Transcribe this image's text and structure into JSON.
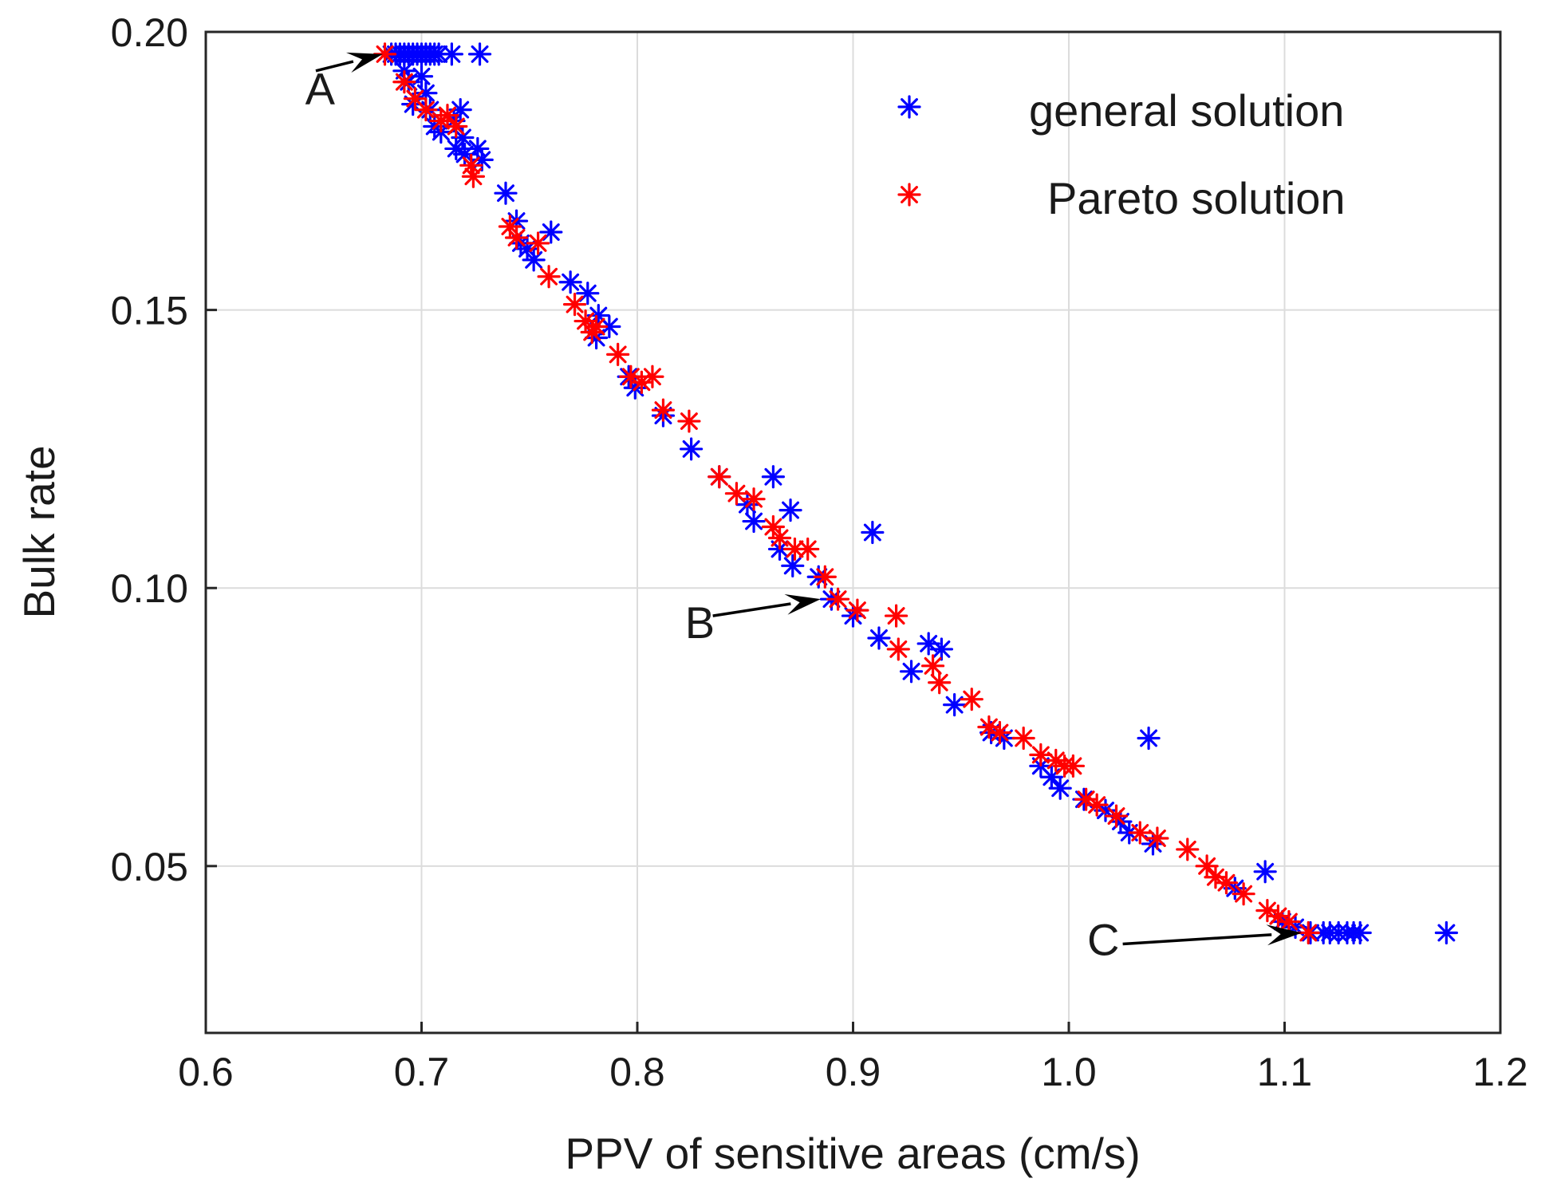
{
  "chart_data": {
    "type": "scatter",
    "title": "",
    "xlabel": "PPV of sensitive areas (cm/s)",
    "ylabel": "Bulk rate",
    "xlim": [
      0.6,
      1.2
    ],
    "ylim": [
      0.02,
      0.2
    ],
    "xticks": [
      0.6,
      0.7,
      0.8,
      0.9,
      1.0,
      1.1,
      1.2
    ],
    "xtick_labels": [
      "0.6",
      "0.7",
      "0.8",
      "0.9",
      "1.0",
      "1.1",
      "1.2"
    ],
    "yticks": [
      0.05,
      0.1,
      0.15,
      0.2
    ],
    "ytick_labels": [
      "0.05",
      "0.10",
      "0.15",
      "0.20"
    ],
    "grid": true,
    "legend_position": "top-right",
    "series": [
      {
        "name": "general solution",
        "color": "#0000ff",
        "marker": "asterisk",
        "points": [
          [
            0.686,
            0.196
          ],
          [
            0.688,
            0.196
          ],
          [
            0.69,
            0.196
          ],
          [
            0.692,
            0.196
          ],
          [
            0.694,
            0.196
          ],
          [
            0.696,
            0.196
          ],
          [
            0.698,
            0.196
          ],
          [
            0.7,
            0.196
          ],
          [
            0.702,
            0.196
          ],
          [
            0.704,
            0.196
          ],
          [
            0.706,
            0.196
          ],
          [
            0.708,
            0.196
          ],
          [
            0.714,
            0.196
          ],
          [
            0.727,
            0.196
          ],
          [
            0.692,
            0.193
          ],
          [
            0.694,
            0.191
          ],
          [
            0.7,
            0.192
          ],
          [
            0.702,
            0.189
          ],
          [
            0.696,
            0.187
          ],
          [
            0.704,
            0.186
          ],
          [
            0.706,
            0.183
          ],
          [
            0.709,
            0.182
          ],
          [
            0.715,
            0.184
          ],
          [
            0.718,
            0.186
          ],
          [
            0.719,
            0.181
          ],
          [
            0.716,
            0.179
          ],
          [
            0.72,
            0.178
          ],
          [
            0.726,
            0.179
          ],
          [
            0.728,
            0.177
          ],
          [
            0.739,
            0.171
          ],
          [
            0.744,
            0.166
          ],
          [
            0.746,
            0.162
          ],
          [
            0.749,
            0.161
          ],
          [
            0.752,
            0.159
          ],
          [
            0.76,
            0.164
          ],
          [
            0.769,
            0.155
          ],
          [
            0.777,
            0.153
          ],
          [
            0.782,
            0.149
          ],
          [
            0.787,
            0.147
          ],
          [
            0.781,
            0.145
          ],
          [
            0.796,
            0.138
          ],
          [
            0.799,
            0.136
          ],
          [
            0.812,
            0.131
          ],
          [
            0.825,
            0.125
          ],
          [
            0.838,
            0.12
          ],
          [
            0.863,
            0.12
          ],
          [
            0.851,
            0.115
          ],
          [
            0.854,
            0.112
          ],
          [
            0.871,
            0.114
          ],
          [
            0.866,
            0.107
          ],
          [
            0.872,
            0.104
          ],
          [
            0.884,
            0.102
          ],
          [
            0.89,
            0.098
          ],
          [
            0.9,
            0.095
          ],
          [
            0.909,
            0.11
          ],
          [
            0.912,
            0.091
          ],
          [
            0.927,
            0.085
          ],
          [
            0.935,
            0.09
          ],
          [
            0.941,
            0.089
          ],
          [
            0.947,
            0.079
          ],
          [
            0.964,
            0.074
          ],
          [
            0.97,
            0.073
          ],
          [
            0.987,
            0.068
          ],
          [
            0.992,
            0.066
          ],
          [
            0.996,
            0.064
          ],
          [
            1.007,
            0.062
          ],
          [
            1.017,
            0.06
          ],
          [
            1.024,
            0.058
          ],
          [
            1.028,
            0.056
          ],
          [
            1.039,
            0.054
          ],
          [
            1.037,
            0.073
          ],
          [
            1.091,
            0.049
          ],
          [
            1.077,
            0.046
          ],
          [
            1.099,
            0.04
          ],
          [
            1.105,
            0.039
          ],
          [
            1.112,
            0.038
          ],
          [
            1.118,
            0.038
          ],
          [
            1.121,
            0.038
          ],
          [
            1.125,
            0.038
          ],
          [
            1.129,
            0.038
          ],
          [
            1.132,
            0.038
          ],
          [
            1.135,
            0.038
          ],
          [
            1.175,
            0.038
          ]
        ]
      },
      {
        "name": "Pareto solution",
        "color": "#ff0000",
        "marker": "asterisk",
        "points": [
          [
            0.683,
            0.196
          ],
          [
            0.692,
            0.191
          ],
          [
            0.697,
            0.188
          ],
          [
            0.702,
            0.186
          ],
          [
            0.709,
            0.184
          ],
          [
            0.712,
            0.185
          ],
          [
            0.716,
            0.183
          ],
          [
            0.723,
            0.176
          ],
          [
            0.724,
            0.174
          ],
          [
            0.741,
            0.165
          ],
          [
            0.744,
            0.163
          ],
          [
            0.754,
            0.162
          ],
          [
            0.759,
            0.156
          ],
          [
            0.771,
            0.151
          ],
          [
            0.776,
            0.148
          ],
          [
            0.779,
            0.146
          ],
          [
            0.781,
            0.147
          ],
          [
            0.791,
            0.142
          ],
          [
            0.797,
            0.138
          ],
          [
            0.802,
            0.137
          ],
          [
            0.807,
            0.138
          ],
          [
            0.812,
            0.132
          ],
          [
            0.824,
            0.13
          ],
          [
            0.838,
            0.12
          ],
          [
            0.846,
            0.117
          ],
          [
            0.854,
            0.116
          ],
          [
            0.863,
            0.111
          ],
          [
            0.866,
            0.109
          ],
          [
            0.873,
            0.107
          ],
          [
            0.879,
            0.107
          ],
          [
            0.887,
            0.102
          ],
          [
            0.893,
            0.098
          ],
          [
            0.902,
            0.096
          ],
          [
            0.92,
            0.095
          ],
          [
            0.921,
            0.089
          ],
          [
            0.937,
            0.086
          ],
          [
            0.94,
            0.083
          ],
          [
            0.955,
            0.08
          ],
          [
            0.963,
            0.075
          ],
          [
            0.968,
            0.074
          ],
          [
            0.979,
            0.073
          ],
          [
            0.987,
            0.07
          ],
          [
            0.994,
            0.069
          ],
          [
            0.998,
            0.068
          ],
          [
            1.002,
            0.068
          ],
          [
            1.008,
            0.062
          ],
          [
            1.013,
            0.061
          ],
          [
            1.022,
            0.059
          ],
          [
            1.033,
            0.056
          ],
          [
            1.041,
            0.055
          ],
          [
            1.055,
            0.053
          ],
          [
            1.064,
            0.05
          ],
          [
            1.068,
            0.048
          ],
          [
            1.073,
            0.047
          ],
          [
            1.081,
            0.045
          ],
          [
            1.092,
            0.042
          ],
          [
            1.097,
            0.041
          ],
          [
            1.102,
            0.04
          ],
          [
            1.111,
            0.038
          ]
        ]
      }
    ],
    "annotations": [
      {
        "label": "A",
        "text_at": [
          0.653,
          0.187
        ],
        "from": [
          0.651,
          0.193
        ],
        "to": [
          0.682,
          0.196
        ]
      },
      {
        "label": "B",
        "text_at": [
          0.829,
          0.091
        ],
        "from": [
          0.835,
          0.095
        ],
        "to": [
          0.885,
          0.098
        ]
      },
      {
        "label": "C",
        "text_at": [
          1.016,
          0.034
        ],
        "from": [
          1.025,
          0.036
        ],
        "to": [
          1.108,
          0.038
        ]
      }
    ]
  }
}
